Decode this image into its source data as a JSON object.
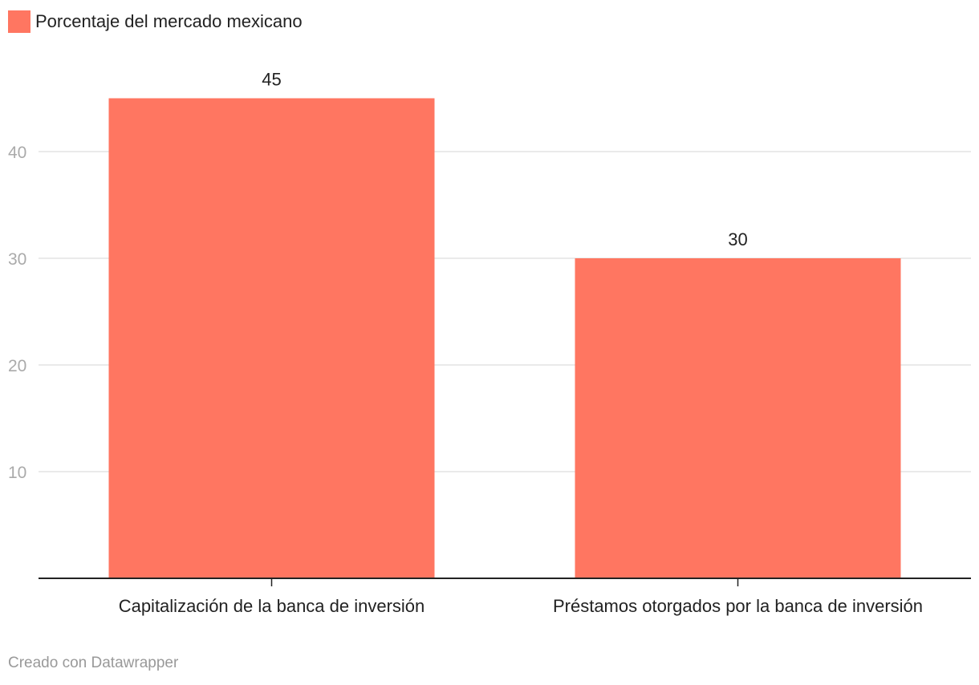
{
  "colors": {
    "bar": "#ff7661",
    "grid": "#e3e3e3",
    "axis": "#222222",
    "tick_text": "#aaaaaa",
    "credit_text": "#999999"
  },
  "chart_data": {
    "type": "bar",
    "title": "",
    "xlabel": "",
    "ylabel": "",
    "categories": [
      "Capitalización de la banca de inversión",
      "Préstamos otorgados por la banca de inversión"
    ],
    "series": [
      {
        "name": "Porcentaje del mercado mexicano",
        "values": [
          45,
          30
        ]
      }
    ],
    "value_labels": [
      "45",
      "30"
    ],
    "ylim": [
      0,
      45
    ],
    "yticks": [
      10,
      20,
      30,
      40
    ],
    "legend_position": "top-left",
    "grid": true
  },
  "legend": {
    "label": "Porcentaje del mercado mexicano"
  },
  "footer": {
    "credit": "Creado con Datawrapper"
  }
}
